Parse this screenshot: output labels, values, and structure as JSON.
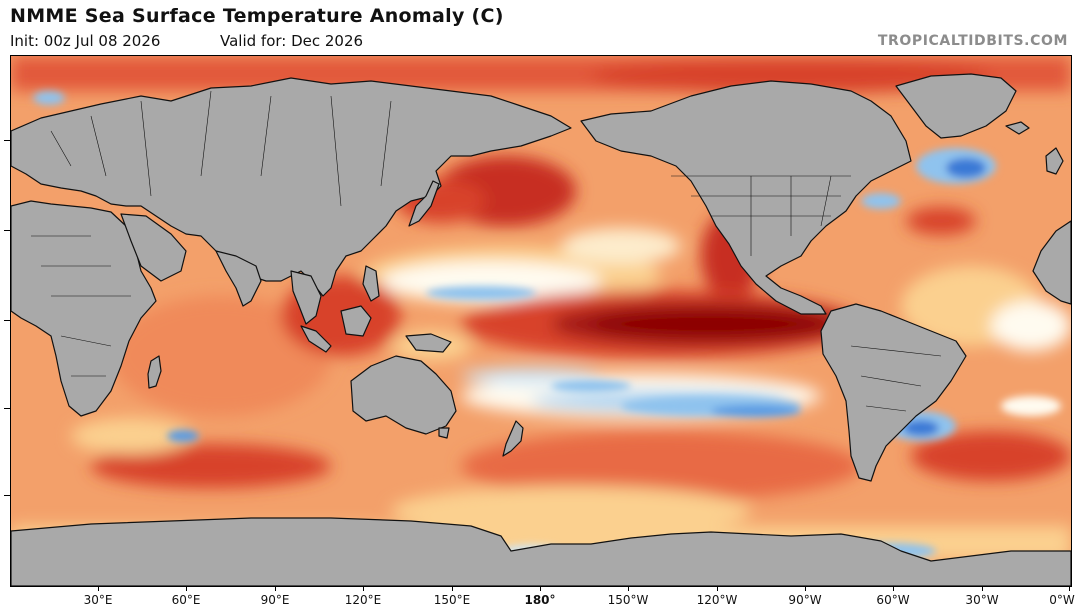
{
  "header": {
    "title": "NMME Sea Surface Temperature Anomaly (C)",
    "init": "Init: 00z Jul 08 2026",
    "valid": "Valid for: Dec 2026",
    "brand": "TROPICALTIDBITS.COM"
  },
  "axis": {
    "x_ticks": [
      "30°E",
      "60°E",
      "90°E",
      "120°E",
      "150°E",
      "180°",
      "150°W",
      "120°W",
      "90°W",
      "60°W",
      "30°W",
      "0°W"
    ]
  },
  "colors": {
    "ocean_base": "#f3a06a",
    "land": "#a9a9a9",
    "warm_strong": "#8b0000",
    "warm": "#d8432a",
    "warm_light": "#fbd08f",
    "neutral": "#fffbf0",
    "cool": "#8fc3ee",
    "cool_strong": "#3a79d6"
  }
}
